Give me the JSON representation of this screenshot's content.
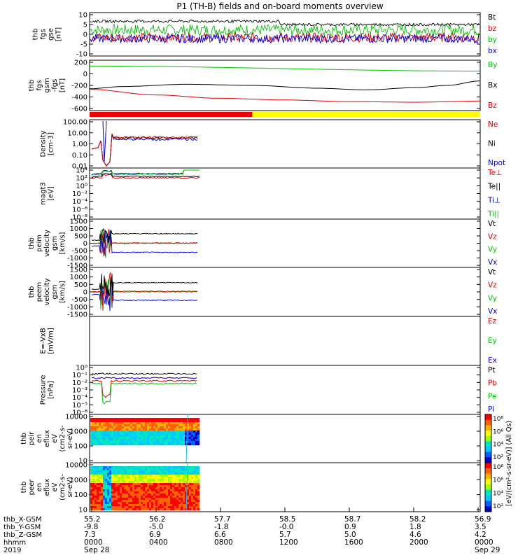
{
  "chart_data": {
    "type": "line",
    "title": "P1 (TH-B) fields and on-board moments overview",
    "panels": [
      {
        "id": "fgs-dsl",
        "ylabel": [
          "thb",
          "fgs",
          "gse",
          "[nT]"
        ],
        "ylim": [
          -10,
          10
        ],
        "yticks": [
          "10",
          "5",
          "0",
          "-5",
          "-10"
        ],
        "series": [
          {
            "name": "Bt",
            "color": "#000000",
            "level": 6,
            "noise": 1.2
          },
          {
            "name": "bz",
            "color": "#e00000",
            "level": -1.5,
            "noise": 2.2
          },
          {
            "name": "by",
            "color": "#00c000",
            "level": 2,
            "noise": 2.6
          },
          {
            "name": "bx",
            "color": "#0000e0",
            "level": -2,
            "noise": 2.0
          }
        ]
      },
      {
        "id": "fgs-gsm",
        "ylabel": [
          "thb",
          "fgs",
          "gsm",
          "-fgs",
          "[nT]"
        ],
        "ylim": [
          -700,
          200
        ],
        "yticks": [
          "200",
          "0",
          "-200",
          "-400",
          "-600"
        ],
        "series": [
          {
            "name": "By",
            "color": "#00c000",
            "points": [
              [
                0,
                95
              ],
              [
                24,
                5
              ]
            ]
          },
          {
            "name": "Bx",
            "color": "#000000",
            "points": [
              [
                0,
                -310
              ],
              [
                2,
                -270
              ],
              [
                6,
                -230
              ],
              [
                10,
                -250
              ],
              [
                14,
                -300
              ],
              [
                17,
                -330
              ],
              [
                20,
                -290
              ],
              [
                22,
                -250
              ],
              [
                24,
                -170
              ]
            ]
          },
          {
            "name": "Bz",
            "color": "#e00000",
            "points": [
              [
                0,
                -320
              ],
              [
                4,
                -420
              ],
              [
                8,
                -480
              ],
              [
                12,
                -510
              ],
              [
                16,
                -540
              ],
              [
                20,
                -550
              ],
              [
                24,
                -530
              ]
            ]
          }
        ]
      },
      {
        "id": "density",
        "ylabel": [
          "Density",
          "[cm-3]"
        ],
        "yticks": [
          "100.00",
          "10.00",
          "1.00",
          "0.10",
          "0.01"
        ],
        "series": [
          {
            "name": "Ne",
            "color": "#e00000"
          },
          {
            "name": "Ni",
            "color": "#000000"
          },
          {
            "name": "Npot",
            "color": "#0000e0"
          }
        ]
      },
      {
        "id": "temperature",
        "ylabel": [
          "magt3",
          "[eV]"
        ],
        "yticks": [
          "10⁴",
          "10²",
          "10⁰",
          "10⁻²",
          "10⁻⁴",
          "10⁻⁶",
          "10⁻⁸"
        ],
        "series": [
          {
            "name": "Te⊥",
            "color": "#e00000"
          },
          {
            "name": "Te||",
            "color": "#000000"
          },
          {
            "name": "Ti⊥",
            "color": "#0000e0"
          },
          {
            "name": "Ti||",
            "color": "#00c000"
          }
        ]
      },
      {
        "id": "peim-velocity",
        "ylabel": [
          "thb",
          "peim",
          "velocity",
          "gsm",
          "[km/s]"
        ],
        "ylim": [
          -1500,
          1500
        ],
        "yticks": [
          "1500",
          "1000",
          "500",
          "0",
          "-500",
          "-1000",
          "-1500"
        ],
        "series": [
          {
            "name": "Vt",
            "color": "#000000",
            "level": 650
          },
          {
            "name": "Vz",
            "color": "#e00000",
            "level": 20
          },
          {
            "name": "Vy",
            "color": "#00c000",
            "level": 0
          },
          {
            "name": "Vx",
            "color": "#0000e0",
            "level": -620
          }
        ]
      },
      {
        "id": "peem-velocity",
        "ylabel": [
          "thb",
          "peem",
          "velocity",
          "gsm",
          "[km/s]"
        ],
        "ylim": [
          -1500,
          1500
        ],
        "yticks": [
          "1500",
          "1000",
          "500",
          "0",
          "-500",
          "-1000",
          "-1500"
        ],
        "series": [
          {
            "name": "Vt",
            "color": "#000000",
            "level": 620
          },
          {
            "name": "Vz",
            "color": "#e00000",
            "level": 40
          },
          {
            "name": "Vy",
            "color": "#00c000",
            "level": 0
          },
          {
            "name": "Vx",
            "color": "#0000e0",
            "level": -560
          }
        ]
      },
      {
        "id": "efield",
        "ylabel": [
          "E=-VxB",
          "[mV/m]"
        ],
        "series": [
          {
            "name": "Ez",
            "color": "#e00000"
          },
          {
            "name": "Ey",
            "color": "#00c000"
          },
          {
            "name": "Ex",
            "color": "#0000e0"
          }
        ]
      },
      {
        "id": "pressure",
        "ylabel": [
          "Pressure",
          "[nPa]"
        ],
        "yticks": [
          "10⁰",
          "10⁻¹",
          "10⁻²",
          "10⁻³",
          "10⁻⁴",
          "10⁻⁵",
          "10⁻⁶"
        ],
        "series": [
          {
            "name": "Pt",
            "color": "#000000"
          },
          {
            "name": "Pb",
            "color": "#e00000"
          },
          {
            "name": "Pe",
            "color": "#00c000"
          },
          {
            "name": "Pi",
            "color": "#0000e0"
          }
        ]
      },
      {
        "id": "peir-spec",
        "ylabel": [
          "thb",
          "peir",
          "en",
          "eflux",
          "eV",
          "(cm2-s-",
          "sr-eV)"
        ],
        "yticks": [
          "10000",
          "1000",
          "100",
          "10"
        ],
        "spectrogram": true
      },
      {
        "id": "peer-spec",
        "ylabel": [
          "thb",
          "peer",
          "en",
          "eflux",
          "eV",
          "(cm2-s-",
          "sr-eV)"
        ],
        "yticks": [
          "10000",
          "1000",
          "100",
          "10"
        ],
        "spectrogram": true
      }
    ],
    "colorbar": {
      "label": "[eV/(cm²-s-sr-eV)] (All Qs)",
      "ticks": [
        "10⁸",
        "10⁶",
        "10⁴",
        "10²"
      ]
    },
    "status_bar": [
      {
        "from": 0,
        "to": 10,
        "color": "#ee0000"
      },
      {
        "from": 10,
        "to": 24,
        "color": "#ffff00"
      }
    ],
    "xaxis": {
      "range_hours": [
        0,
        24
      ],
      "rows": [
        {
          "label": "thb_X-GSM",
          "values": [
            "55.2",
            "56.2",
            "57.7",
            "58.5",
            "58.7",
            "58.2",
            "56.9"
          ]
        },
        {
          "label": "thb_Y-GSM",
          "values": [
            "-9.8",
            "-5.0",
            "-1.8",
            "-0.0",
            "0.9",
            "1.8",
            "3.5"
          ]
        },
        {
          "label": "thb_Z-GSM",
          "values": [
            "7.3",
            "6.9",
            "6.6",
            "5.7",
            "5.0",
            "4.6",
            "4.2"
          ]
        },
        {
          "label": "hhmm",
          "values": [
            "0000",
            "0400",
            "0800",
            "1200",
            "1600",
            "2000",
            "0000"
          ]
        },
        {
          "label": "2019",
          "values": [
            "Sep 28",
            "",
            "",
            "",
            "",
            "",
            "Sep 29"
          ]
        }
      ]
    }
  }
}
